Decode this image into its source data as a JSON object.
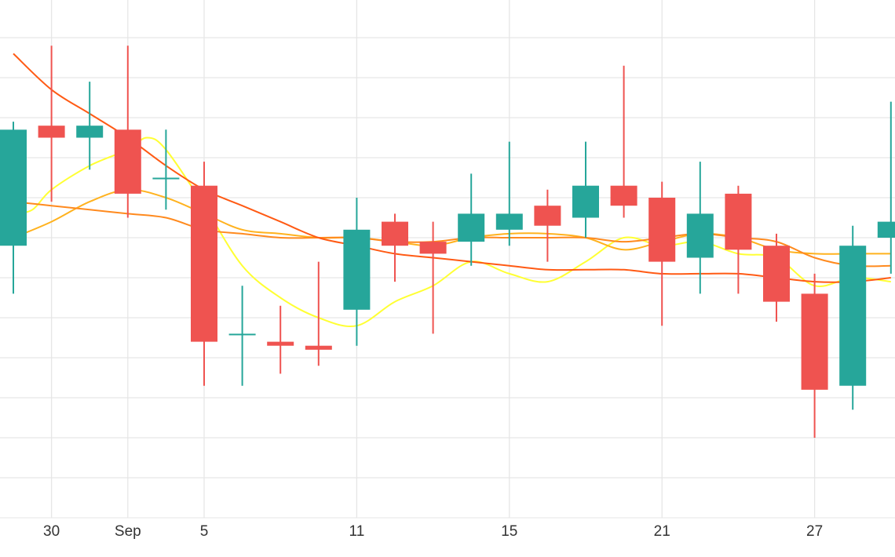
{
  "chart_data": {
    "type": "candlestick",
    "x_tick_labels": [
      {
        "day": 1,
        "label": "30"
      },
      {
        "day": 3,
        "label": "Sep"
      },
      {
        "day": 5,
        "label": "5"
      },
      {
        "day": 9,
        "label": "11"
      },
      {
        "day": 13,
        "label": "15"
      },
      {
        "day": 17,
        "label": "21"
      },
      {
        "day": 21,
        "label": "27"
      }
    ],
    "ylim": [
      0,
      13
    ],
    "grid": true,
    "colors": {
      "up": "#26a69a",
      "down": "#ef5350",
      "grid": "#e6e6e6",
      "ma_fast": "#ffff33",
      "ma_mid1": "#ffb21e",
      "ma_mid2": "#ff8a1e",
      "ma_slow": "#ff5a14"
    },
    "candles": [
      {
        "day": 0,
        "open": 6.8,
        "high": 9.9,
        "low": 5.6,
        "close": 9.7
      },
      {
        "day": 1,
        "open": 9.8,
        "high": 11.8,
        "low": 7.9,
        "close": 9.5
      },
      {
        "day": 2,
        "open": 9.5,
        "high": 10.9,
        "low": 8.7,
        "close": 9.8
      },
      {
        "day": 3,
        "open": 9.7,
        "high": 11.8,
        "low": 7.5,
        "close": 8.1
      },
      {
        "day": 4,
        "open": 8.5,
        "high": 9.7,
        "low": 7.7,
        "close": 8.5
      },
      {
        "day": 5,
        "open": 8.3,
        "high": 8.9,
        "low": 3.3,
        "close": 4.4
      },
      {
        "day": 6,
        "open": 4.6,
        "high": 5.8,
        "low": 3.3,
        "close": 4.6
      },
      {
        "day": 7,
        "open": 4.4,
        "high": 5.3,
        "low": 3.6,
        "close": 4.3
      },
      {
        "day": 8,
        "open": 4.3,
        "high": 6.4,
        "low": 3.8,
        "close": 4.2
      },
      {
        "day": 9,
        "open": 5.2,
        "high": 8.0,
        "low": 4.3,
        "close": 7.2
      },
      {
        "day": 10,
        "open": 7.4,
        "high": 7.6,
        "low": 5.9,
        "close": 6.8
      },
      {
        "day": 11,
        "open": 6.9,
        "high": 7.4,
        "low": 4.6,
        "close": 6.6
      },
      {
        "day": 12,
        "open": 6.9,
        "high": 8.6,
        "low": 6.3,
        "close": 7.6
      },
      {
        "day": 13,
        "open": 7.2,
        "high": 9.4,
        "low": 6.8,
        "close": 7.6
      },
      {
        "day": 14,
        "open": 7.8,
        "high": 8.2,
        "low": 6.4,
        "close": 7.3
      },
      {
        "day": 15,
        "open": 7.5,
        "high": 9.4,
        "low": 7.0,
        "close": 8.3
      },
      {
        "day": 16,
        "open": 8.3,
        "high": 11.3,
        "low": 7.5,
        "close": 7.8
      },
      {
        "day": 17,
        "open": 8.0,
        "high": 8.4,
        "low": 4.8,
        "close": 6.4
      },
      {
        "day": 18,
        "open": 6.5,
        "high": 8.9,
        "low": 5.6,
        "close": 7.6
      },
      {
        "day": 19,
        "open": 8.1,
        "high": 8.3,
        "low": 5.6,
        "close": 6.7
      },
      {
        "day": 20,
        "open": 6.8,
        "high": 7.1,
        "low": 4.9,
        "close": 5.4
      },
      {
        "day": 21,
        "open": 5.6,
        "high": 6.1,
        "low": 2.0,
        "close": 3.2
      },
      {
        "day": 22,
        "open": 3.3,
        "high": 7.3,
        "low": 2.7,
        "close": 6.8
      },
      {
        "day": 23,
        "open": 7.0,
        "high": 10.4,
        "low": 6.1,
        "close": 7.4
      }
    ],
    "series": [
      {
        "color": "#ffff33",
        "values": [
          [
            0,
            7.6
          ],
          [
            0.5,
            7.7
          ],
          [
            1,
            8.2
          ],
          [
            2,
            8.8
          ],
          [
            3,
            9.2
          ],
          [
            3.5,
            9.5
          ],
          [
            4,
            9.2
          ],
          [
            5,
            7.8
          ],
          [
            6,
            6.3
          ],
          [
            7,
            5.5
          ],
          [
            8,
            5.0
          ],
          [
            9,
            4.8
          ],
          [
            10,
            5.4
          ],
          [
            11,
            5.8
          ],
          [
            12,
            6.4
          ],
          [
            13,
            6.1
          ],
          [
            14,
            5.9
          ],
          [
            15,
            6.4
          ],
          [
            16,
            7.0
          ],
          [
            17,
            6.8
          ],
          [
            18,
            6.9
          ],
          [
            19,
            6.6
          ],
          [
            20,
            6.5
          ],
          [
            21,
            5.8
          ],
          [
            22,
            6.0
          ],
          [
            23,
            5.9
          ]
        ]
      },
      {
        "color": "#ffb21e",
        "values": [
          [
            0,
            7.0
          ],
          [
            1,
            7.4
          ],
          [
            2,
            7.9
          ],
          [
            3,
            8.2
          ],
          [
            4,
            8.0
          ],
          [
            5,
            7.6
          ],
          [
            6,
            7.2
          ],
          [
            7,
            7.1
          ],
          [
            8,
            7.0
          ],
          [
            9,
            7.0
          ],
          [
            10,
            6.9
          ],
          [
            11,
            6.8
          ],
          [
            12,
            7.0
          ],
          [
            13,
            7.1
          ],
          [
            14,
            7.1
          ],
          [
            15,
            7.0
          ],
          [
            16,
            6.7
          ],
          [
            17,
            6.9
          ],
          [
            18,
            7.1
          ],
          [
            19,
            7.0
          ],
          [
            20,
            6.7
          ],
          [
            21,
            6.6
          ],
          [
            22,
            6.6
          ],
          [
            23,
            6.6
          ]
        ]
      },
      {
        "color": "#ff8a1e",
        "values": [
          [
            0,
            7.9
          ],
          [
            1,
            7.8
          ],
          [
            2,
            7.7
          ],
          [
            3,
            7.6
          ],
          [
            4,
            7.5
          ],
          [
            5,
            7.2
          ],
          [
            6,
            7.1
          ],
          [
            7,
            7.0
          ],
          [
            8,
            7.0
          ],
          [
            9,
            7.0
          ],
          [
            10,
            6.9
          ],
          [
            11,
            6.9
          ],
          [
            12,
            7.0
          ],
          [
            13,
            7.0
          ],
          [
            14,
            7.0
          ],
          [
            15,
            7.0
          ],
          [
            16,
            6.9
          ],
          [
            17,
            7.0
          ],
          [
            18,
            7.1
          ],
          [
            19,
            7.0
          ],
          [
            20,
            6.9
          ],
          [
            21,
            6.5
          ],
          [
            22,
            6.3
          ],
          [
            23,
            6.3
          ]
        ]
      },
      {
        "color": "#ff5a14",
        "values": [
          [
            0,
            11.6
          ],
          [
            1,
            10.7
          ],
          [
            2,
            10.1
          ],
          [
            3,
            9.5
          ],
          [
            4,
            8.8
          ],
          [
            5,
            8.2
          ],
          [
            6,
            7.8
          ],
          [
            7,
            7.4
          ],
          [
            8,
            7.0
          ],
          [
            9,
            6.8
          ],
          [
            10,
            6.6
          ],
          [
            11,
            6.5
          ],
          [
            12,
            6.4
          ],
          [
            13,
            6.3
          ],
          [
            14,
            6.2
          ],
          [
            15,
            6.2
          ],
          [
            16,
            6.2
          ],
          [
            17,
            6.1
          ],
          [
            18,
            6.1
          ],
          [
            19,
            6.1
          ],
          [
            20,
            6.0
          ],
          [
            21,
            5.9
          ],
          [
            22,
            5.9
          ],
          [
            23,
            6.0
          ]
        ]
      }
    ]
  }
}
